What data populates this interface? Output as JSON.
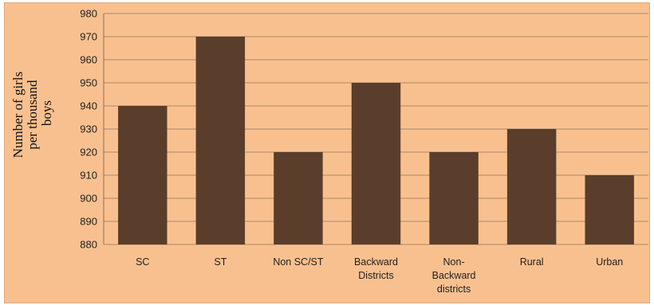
{
  "chart_data": {
    "type": "bar",
    "title": "",
    "xlabel": "",
    "ylabel_lines": [
      "Number of girls",
      "per thousand",
      "boys"
    ],
    "categories": [
      [
        "SC"
      ],
      [
        "ST"
      ],
      [
        "Non SC/ST"
      ],
      [
        "Backward",
        "Districts"
      ],
      [
        "Non-",
        "Backward",
        "districts"
      ],
      [
        "Rural"
      ],
      [
        "Urban"
      ]
    ],
    "values": [
      940,
      970,
      920,
      950,
      920,
      930,
      910
    ],
    "ylim": [
      880,
      980
    ],
    "ytick_step": 10,
    "grid": true,
    "colors": {
      "bar": "#5a3e2b",
      "background": "#f9c08f",
      "grid": "#a88a6c",
      "axis": "#8a7058"
    }
  }
}
